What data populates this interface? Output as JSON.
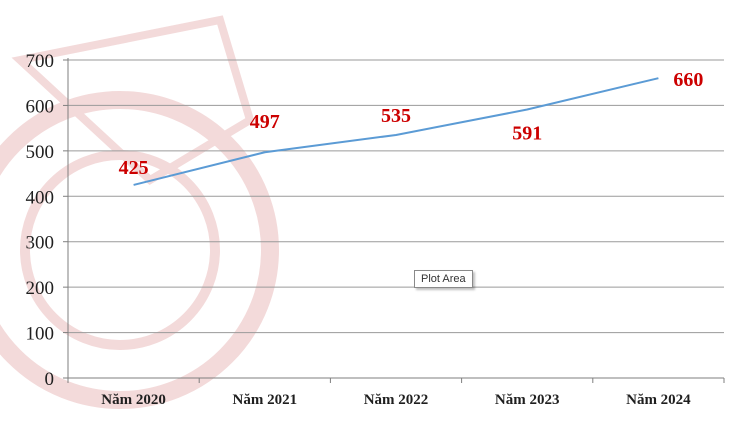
{
  "colors": {
    "line": "#5b9bd5",
    "data_label": "#cc0000",
    "grid": "#9a9a9a",
    "axis": "#7f7f7f",
    "watermark": "#f3dada"
  },
  "tooltip": {
    "text": "Plot Area"
  },
  "chart_data": {
    "type": "line",
    "categories": [
      "Năm 2020",
      "Năm 2021",
      "Năm 2022",
      "Năm 2023",
      "Năm 2024"
    ],
    "series": [
      {
        "values": [
          425,
          497,
          535,
          591,
          660
        ]
      }
    ],
    "data_labels": [
      "425",
      "497",
      "535",
      "591",
      "660"
    ],
    "y_ticks": [
      "0",
      "100",
      "200",
      "300",
      "400",
      "500",
      "600",
      "700"
    ],
    "ylim": [
      0,
      700
    ],
    "grid": true,
    "legend": "none",
    "title": "",
    "xlabel": "",
    "ylabel": ""
  }
}
